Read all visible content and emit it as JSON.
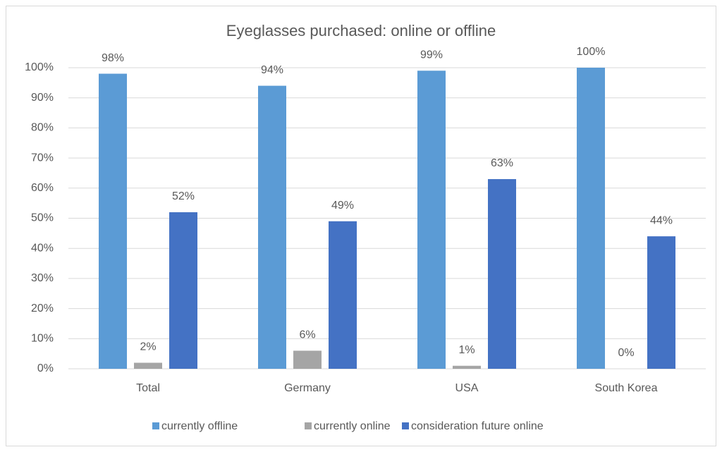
{
  "chart_data": {
    "type": "bar",
    "title": "Eyeglasses purchased: online or offline",
    "categories": [
      "Total",
      "Germany",
      "USA",
      "South Korea"
    ],
    "series": [
      {
        "name": "currently offline",
        "color": "#5b9bd5",
        "values": [
          98,
          94,
          99,
          100
        ],
        "value_labels": [
          "98%",
          "94%",
          "99%",
          "100%"
        ]
      },
      {
        "name": "currently online",
        "color": "#a5a5a5",
        "values": [
          2,
          6,
          1,
          0
        ],
        "value_labels": [
          "2%",
          "6%",
          "1%",
          "0%"
        ]
      },
      {
        "name": "consideration future online",
        "color": "#4472c4",
        "values": [
          52,
          49,
          63,
          44
        ],
        "value_labels": [
          "52%",
          "49%",
          "63%",
          "44%"
        ]
      }
    ],
    "ylim": [
      0,
      100
    ],
    "yticks": [
      {
        "value": 0,
        "label": "0%"
      },
      {
        "value": 10,
        "label": "10%"
      },
      {
        "value": 20,
        "label": "20%"
      },
      {
        "value": 30,
        "label": "30%"
      },
      {
        "value": 40,
        "label": "40%"
      },
      {
        "value": 50,
        "label": "50%"
      },
      {
        "value": 60,
        "label": "60%"
      },
      {
        "value": 70,
        "label": "70%"
      },
      {
        "value": 80,
        "label": "80%"
      },
      {
        "value": 90,
        "label": "90%"
      },
      {
        "value": 100,
        "label": "100%"
      }
    ],
    "grid": true,
    "legend": "bottom"
  }
}
